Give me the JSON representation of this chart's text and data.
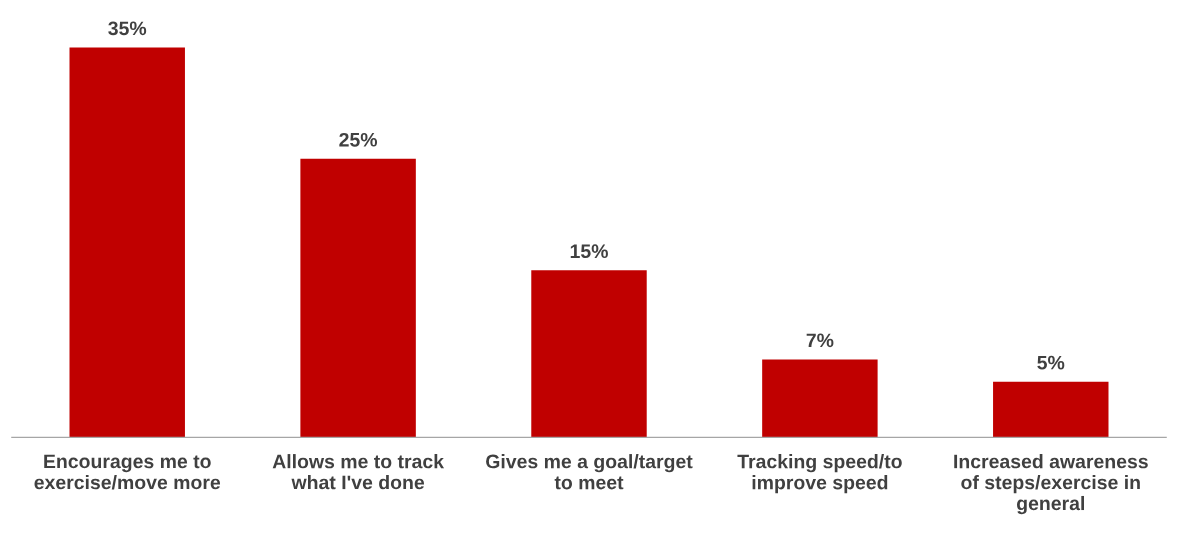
{
  "chart_data": {
    "type": "bar",
    "categories": [
      "Encourages me to\nexercise/move more",
      "Allows me to track\nwhat I've done",
      "Gives me a goal/target\nto meet",
      "Tracking speed/to\nimprove speed",
      "Increased awareness\nof steps/exercise in\ngeneral"
    ],
    "values": [
      35,
      25,
      15,
      7,
      5
    ],
    "value_labels": [
      "35%",
      "25%",
      "15%",
      "7%",
      "5%"
    ],
    "color": "#c00000",
    "tick_labels": "x",
    "grid": false
  }
}
